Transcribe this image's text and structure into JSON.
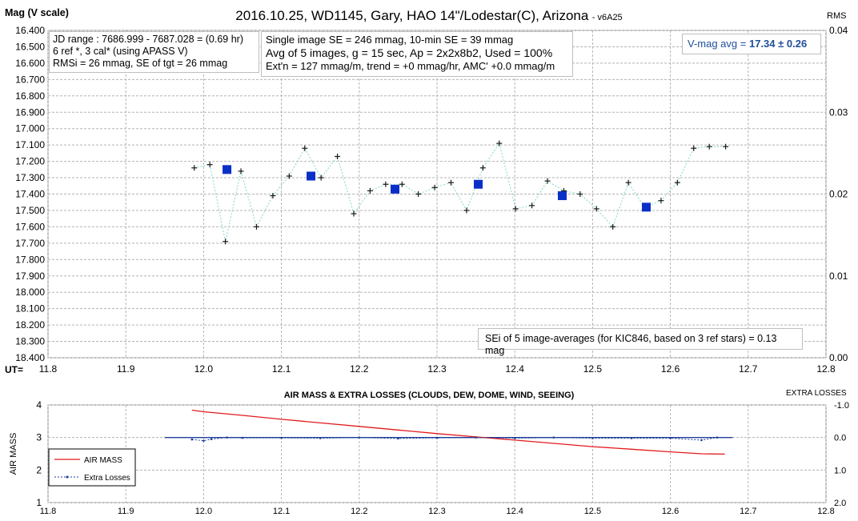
{
  "chart_data": [
    {
      "type": "scatter",
      "title": "2016.10.25, WD1145, Gary, HAO 14\"/Lodestar(C), Arizona",
      "version_tag": "- v6A25",
      "ylabel": "Mag (V scale)",
      "y2label": "RMS",
      "xlabel_prefix": "UT=",
      "xlim": [
        11.8,
        12.8
      ],
      "ylim": [
        16.4,
        18.4
      ],
      "y_reversed": true,
      "y2lim": [
        0.0,
        0.04
      ],
      "grid": true,
      "x_ticks": [
        "11.8",
        "11.9",
        "12.0",
        "12.1",
        "12.2",
        "12.3",
        "12.4",
        "12.5",
        "12.6",
        "12.7",
        "12.8"
      ],
      "y_ticks": [
        "16.400",
        "16.500",
        "16.600",
        "16.700",
        "16.800",
        "16.900",
        "17.000",
        "17.100",
        "17.200",
        "17.300",
        "17.400",
        "17.500",
        "17.600",
        "17.700",
        "17.800",
        "17.900",
        "18.000",
        "18.100",
        "18.200",
        "18.300",
        "18.400"
      ],
      "y2_ticks": [
        "0.04",
        "0.03",
        "0.02",
        "0.01",
        "0.00"
      ],
      "series": [
        {
          "color": "#1a1a1a",
          "line_color": "#7fd6cc",
          "x": [
            11.988,
            12.008,
            12.028,
            12.048,
            12.068,
            12.089,
            12.11,
            12.13,
            12.151,
            12.172,
            12.193,
            12.214,
            12.234,
            12.255,
            12.276,
            12.297,
            12.318,
            12.338,
            12.359,
            12.38,
            12.401,
            12.422,
            12.442,
            12.463,
            12.484,
            12.505,
            12.526,
            12.546,
            12.567,
            12.588,
            12.609,
            12.63,
            12.65,
            12.671
          ],
          "y": [
            17.24,
            17.22,
            17.69,
            17.26,
            17.6,
            17.41,
            17.29,
            17.12,
            17.3,
            17.17,
            17.52,
            17.38,
            17.34,
            17.34,
            17.4,
            17.36,
            17.33,
            17.5,
            17.24,
            17.09,
            17.49,
            17.47,
            17.32,
            17.38,
            17.4,
            17.49,
            17.6,
            17.33,
            17.48,
            17.44,
            17.33,
            17.12,
            17.11,
            17.11
          ]
        },
        {
          "color": "#0a2fc8",
          "x": [
            12.03,
            12.138,
            12.246,
            12.353,
            12.461,
            12.569
          ],
          "y": [
            17.25,
            17.29,
            17.37,
            17.34,
            17.41,
            17.48
          ]
        }
      ],
      "info_left": [
        "JD range : 7686.999 - 7687.028 = (0.69 hr)",
        "6 ref *, 3 cal* (using APASS V)",
        "RMSi = 26 mmag, SE of tgt = 26 mmag"
      ],
      "info_mid": [
        "Single image SE = 246 mmag, 10-min SE = 39 mmag",
        "Avg of 5 images, g = 15 sec, Ap = 2x2x8b2, Used = 100%",
        "Ext'n = 127 mmag/m, trend = +0 mmag/hr, AMC' +0.0 mmag/m"
      ],
      "vmag_label": "V-mag avg =",
      "vmag_value": "17.34",
      "vmag_err": "± 0.26",
      "sei_note": "SEi of 5 image-averages (for KIC846, based on 3 ref stars) = 0.13 mag"
    },
    {
      "type": "line",
      "title": "AIR MASS & EXTRA LOSSES (CLOUDS, DEW, DOME, WIND, SEEING)",
      "ylabel": "AIR MASS",
      "y2label": "EXTRA LOSSES",
      "xlim": [
        11.8,
        12.8
      ],
      "ylim": [
        1,
        4
      ],
      "y2lim": [
        2.0,
        -1.0
      ],
      "grid": true,
      "x_ticks": [
        "11.8",
        "11.9",
        "12.0",
        "12.1",
        "12.2",
        "12.3",
        "12.4",
        "12.5",
        "12.6",
        "12.7",
        "12.8"
      ],
      "y_ticks": [
        "4",
        "3",
        "2",
        "1"
      ],
      "y2_ticks": [
        "-1.0",
        "0.0",
        "1.0",
        "2.0"
      ],
      "baseline_x": [
        11.95,
        12.68
      ],
      "series": [
        {
          "name": "AIR MASS",
          "color": "#e31a1c",
          "x": [
            11.985,
            12.0,
            12.05,
            12.1,
            12.15,
            12.2,
            12.25,
            12.3,
            12.35,
            12.4,
            12.45,
            12.5,
            12.55,
            12.6,
            12.64,
            12.67
          ],
          "y": [
            3.84,
            3.79,
            3.68,
            3.56,
            3.45,
            3.34,
            3.23,
            3.12,
            3.02,
            2.92,
            2.82,
            2.72,
            2.64,
            2.56,
            2.5,
            2.49
          ]
        },
        {
          "name": "Extra Losses",
          "color": "#1f3f9a",
          "x": [
            11.985,
            12.0,
            12.01,
            12.03,
            12.05,
            12.1,
            12.15,
            12.2,
            12.25,
            12.3,
            12.35,
            12.4,
            12.45,
            12.5,
            12.55,
            12.6,
            12.64,
            12.66
          ],
          "y": [
            0.06,
            0.1,
            0.05,
            0.0,
            0.01,
            0.01,
            0.02,
            0.0,
            0.03,
            0.01,
            0.0,
            0.02,
            0.0,
            0.02,
            0.02,
            0.02,
            0.08,
            0.0
          ]
        }
      ]
    }
  ]
}
